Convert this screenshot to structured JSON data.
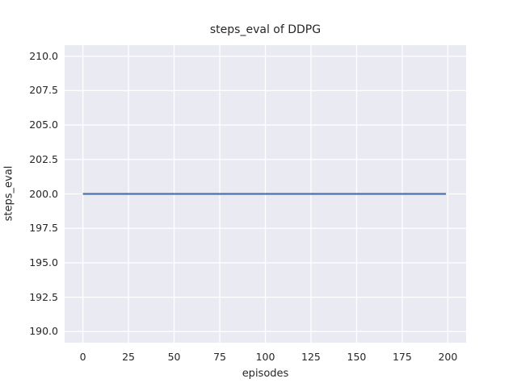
{
  "figure": {
    "background": "#ffffff",
    "plot_background": "#eaeaf2",
    "grid_color": "#ffffff",
    "text_color": "#262626"
  },
  "chart_data": {
    "type": "line",
    "title": "steps_eval of DDPG",
    "xlabel": "episodes",
    "ylabel": "steps_eval",
    "xlim": [
      -10,
      210
    ],
    "ylim": [
      189.2,
      210.8
    ],
    "xticks": [
      0,
      25,
      50,
      75,
      100,
      125,
      150,
      175,
      200
    ],
    "xtick_labels": [
      "0",
      "25",
      "50",
      "75",
      "100",
      "125",
      "150",
      "175",
      "200"
    ],
    "yticks": [
      190.0,
      192.5,
      195.0,
      197.5,
      200.0,
      202.5,
      205.0,
      207.5,
      210.0
    ],
    "ytick_labels": [
      "190.0",
      "192.5",
      "195.0",
      "197.5",
      "200.0",
      "202.5",
      "205.0",
      "207.5",
      "210.0"
    ],
    "grid": true,
    "legend_position": "none",
    "series": [
      {
        "name": "DDPG steps_eval",
        "color": "#4c72b0",
        "line_width": 2.2,
        "x": [
          0,
          199
        ],
        "y": [
          200,
          200
        ],
        "description": "constant value of 200 steps per evaluation episode from episode 0 through 199"
      }
    ]
  }
}
